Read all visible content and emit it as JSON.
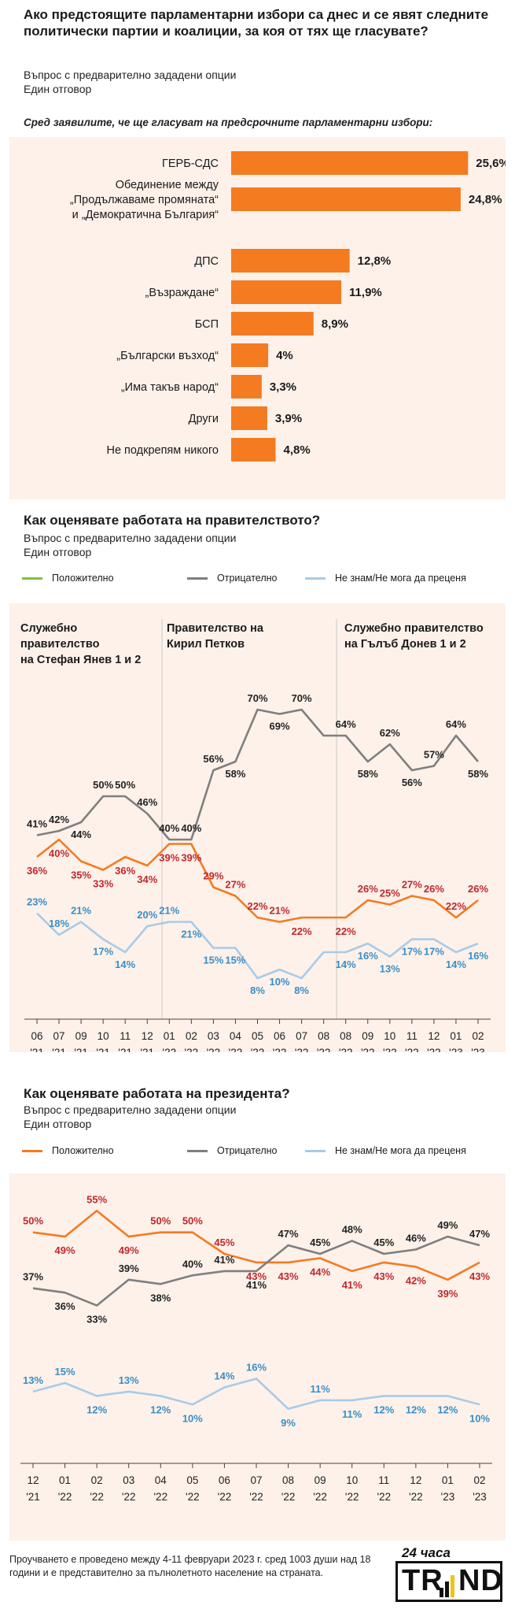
{
  "section1": {
    "title": "Ако предстоящите парламентарни избори са днес и се явят следните политически партии и коалиции, за коя от тях ще гласувате?",
    "sub1": "Въпрос с предварително зададени опции",
    "sub2": "Един отговор",
    "note": "Сред заявилите, че ще гласуват на предсрочните парламентарни избори:"
  },
  "section2": {
    "title": "Как оценявате работата на правителството?",
    "sub1": "Въпрос с предварително зададени опции",
    "sub2": "Един отговор",
    "legend": [
      "Положително",
      "Отрицателно",
      "Не знам/Не мога да преценя"
    ],
    "periods": [
      {
        "line1": "Служебно",
        "line2": "правителство",
        "line3": "на Стефан Янев 1 и 2"
      },
      {
        "line1": "Правителство на",
        "line2": "Кирил Петков",
        "line3": ""
      },
      {
        "line1": "Служебно правителство",
        "line2": "на Гълъб Донев 1 и 2",
        "line3": ""
      }
    ]
  },
  "section3": {
    "title": "Как оценявате работата на президента?",
    "sub1": "Въпрос с предварително зададени опции",
    "sub2": "Един отговор",
    "legend": [
      "Положително",
      "Отрицателно",
      "Не знам/Не мога да преценя"
    ]
  },
  "footer": {
    "text": "Проучването е проведено между 4-11 февруари 2023 г. сред 1003 души над 18 години и е представително за пълнолетното население на страната.",
    "logo_top": "24 часа",
    "logo_main": "TR",
    "logo_main2": "ND"
  },
  "colors": {
    "orange": "#f47b20",
    "red_label": "#c0282d",
    "gray": "#7f7f7f",
    "blue": "#a9cbe7",
    "blue_label": "#3a8ec6",
    "green": "#7fc241",
    "panel": "#fdf1ea"
  },
  "chart_data": [
    {
      "type": "bar",
      "orientation": "horizontal",
      "categories": [
        "ГЕРБ-СДС",
        "Обединение между „Продължаваме промяната“ и „Демократична България“",
        "ДПС",
        "„Възраждане“",
        "БСП",
        "„Български възход“",
        "„Има такъв народ“",
        "Други",
        "Не подкрепям никого"
      ],
      "category_lines": [
        [
          "ГЕРБ-СДС"
        ],
        [
          "Обединение между",
          "„Продължаваме промяната“",
          "и „Демократична България“"
        ],
        [
          "ДПС"
        ],
        [
          "„Възраждане“"
        ],
        [
          "БСП"
        ],
        [
          "„Български възход“"
        ],
        [
          "„Има такъв народ“"
        ],
        [
          "Други"
        ],
        [
          "Не подкрепям никого"
        ]
      ],
      "values": [
        25.6,
        24.8,
        12.8,
        11.9,
        8.9,
        4,
        3.3,
        3.9,
        4.8
      ],
      "labels": [
        "25,6%",
        "24,8%",
        "12,8%",
        "11,9%",
        "8,9%",
        "4%",
        "3,3%",
        "3,9%",
        "4,8%"
      ],
      "bar_color": "#f47b20"
    },
    {
      "type": "line",
      "x_top": [
        "06",
        "07",
        "09",
        "10",
        "11",
        "12",
        "01",
        "02",
        "03",
        "04",
        "05",
        "06",
        "07",
        "08",
        "08",
        "09",
        "10",
        "11",
        "12",
        "01",
        "02"
      ],
      "x_bottom": [
        "'21",
        "'21",
        "'21",
        "'21",
        "'21",
        "'21",
        "'22",
        "'22",
        "'22",
        "'22",
        "'22",
        "'22",
        "'22",
        "'22",
        "'22",
        "'22",
        "'22",
        "'22",
        "'22",
        "'23",
        "'23"
      ],
      "ylim": [
        0,
        80
      ],
      "series": [
        {
          "name": "Положително",
          "color": "#f47b20",
          "label_color": "#c0282d",
          "values": [
            36,
            40,
            35,
            33,
            36,
            34,
            39,
            39,
            29,
            27,
            22,
            21,
            22,
            22,
            22,
            26,
            25,
            27,
            26,
            22,
            26
          ]
        },
        {
          "name": "Отрицателно",
          "color": "#7f7f7f",
          "label_color": "#222222",
          "values": [
            41,
            42,
            44,
            50,
            50,
            46,
            40,
            40,
            56,
            58,
            70,
            69,
            70,
            64,
            64,
            58,
            62,
            56,
            57,
            64,
            58
          ]
        },
        {
          "name": "Не знам/Не мога да преценя",
          "color": "#a9cbe7",
          "label_color": "#3a8ec6",
          "values": [
            23,
            18,
            21,
            17,
            14,
            20,
            21,
            21,
            15,
            15,
            8,
            10,
            8,
            14,
            14,
            16,
            13,
            17,
            17,
            14,
            16
          ]
        },
        {
          "name": "Положително (зелено)",
          "color": "#7fc241",
          "values": []
        }
      ]
    },
    {
      "type": "line",
      "x_top": [
        "12",
        "01",
        "02",
        "03",
        "04",
        "05",
        "06",
        "07",
        "08",
        "09",
        "10",
        "11",
        "12",
        "01",
        "02"
      ],
      "x_bottom": [
        "'21",
        "'22",
        "'22",
        "'22",
        "'22",
        "'22",
        "'22",
        "'22",
        "'22",
        "'22",
        "'22",
        "'22",
        "'22",
        "'23",
        "'23"
      ],
      "ylim": [
        0,
        60
      ],
      "series": [
        {
          "name": "Положително",
          "color": "#f47b20",
          "label_color": "#c0282d",
          "values": [
            50,
            49,
            55,
            49,
            50,
            50,
            45,
            43,
            43,
            44,
            41,
            43,
            42,
            39,
            43
          ]
        },
        {
          "name": "Отрицателно",
          "color": "#7f7f7f",
          "label_color": "#222222",
          "values": [
            37,
            36,
            33,
            39,
            38,
            40,
            41,
            41,
            47,
            45,
            48,
            45,
            46,
            49,
            47
          ]
        },
        {
          "name": "Не знам/Не мога да преценя",
          "color": "#a9cbe7",
          "label_color": "#3a8ec6",
          "values": [
            13,
            15,
            12,
            13,
            12,
            10,
            14,
            16,
            9,
            11,
            11,
            12,
            12,
            12,
            10
          ]
        }
      ]
    }
  ]
}
